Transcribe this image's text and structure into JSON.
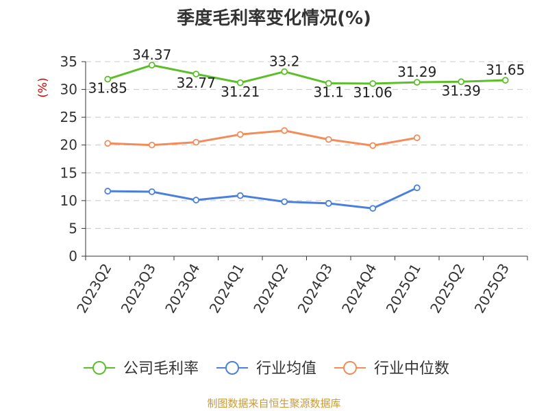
{
  "title": "季度毛利率变化情况(%)",
  "source": "制图数据来自恒生聚源数据库",
  "chart_data": {
    "type": "line",
    "title": "季度毛利率变化情况(%)",
    "ylabel": "(%)",
    "xlabel": "",
    "ylim": [
      0,
      35
    ],
    "yticks": [
      0,
      5,
      10,
      15,
      20,
      25,
      30,
      35
    ],
    "grid": true,
    "legend_position": "bottom",
    "categories": [
      "2023Q2",
      "2023Q3",
      "2023Q4",
      "2024Q1",
      "2024Q2",
      "2024Q3",
      "2024Q4",
      "2025Q1",
      "2025Q2",
      "2025Q3"
    ],
    "series": [
      {
        "name": "公司毛利率",
        "color": "#5cbf2a",
        "values": [
          31.85,
          34.37,
          32.77,
          31.21,
          33.2,
          31.1,
          31.06,
          31.29,
          31.39,
          31.65
        ],
        "labels": [
          "31.85",
          "34.37",
          "32.77",
          "31.21",
          "33.2",
          "31.1",
          "31.06",
          "31.29",
          "31.39",
          "31.65"
        ]
      },
      {
        "name": "行业均值",
        "color": "#4a7fdc",
        "values": [
          11.7,
          11.6,
          10.1,
          10.9,
          9.8,
          9.5,
          8.6,
          12.3,
          null,
          null
        ]
      },
      {
        "name": "行业中位数",
        "color": "#f48c5a",
        "values": [
          20.3,
          20.0,
          20.5,
          21.9,
          22.6,
          21.0,
          19.9,
          21.3,
          null,
          null
        ]
      }
    ]
  }
}
